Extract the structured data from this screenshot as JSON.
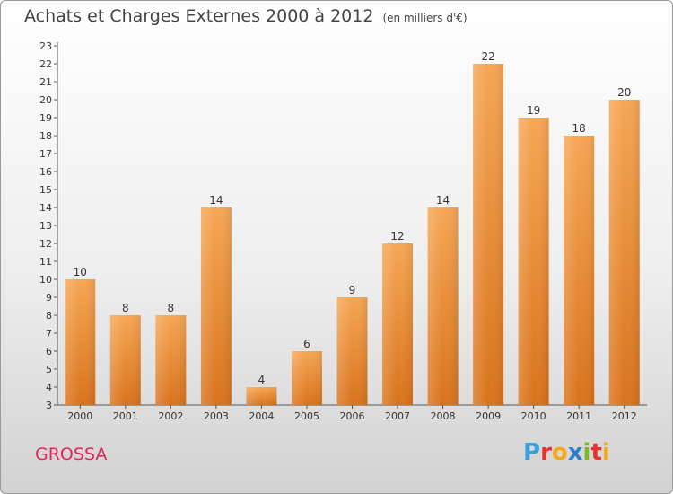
{
  "header": {
    "title": "Achats et Charges Externes 2000 à 2012",
    "subtitle": "(en milliers d'€)"
  },
  "footer": {
    "town": "GROSSA",
    "logo": "Proxiti",
    "logo_colors": [
      "#3aa0d8",
      "#e5322d",
      "#f3a91a",
      "#2a7fc9",
      "#7ab929",
      "#e5322d",
      "#f3a91a"
    ]
  },
  "colors": {
    "bar_top": "#f6a654",
    "bar_bottom": "#d9731c",
    "axis": "#555555",
    "grid": "#bbbbbb",
    "title": "#444444",
    "town": "#e3265a"
  },
  "chart_data": {
    "type": "bar",
    "title": "Achats et Charges Externes 2000 à 2012",
    "subtitle": "(en milliers d'€)",
    "xlabel": "",
    "ylabel": "",
    "ylim": [
      3,
      23
    ],
    "yticks": [
      3,
      4,
      5,
      6,
      7,
      8,
      9,
      10,
      11,
      12,
      13,
      14,
      15,
      16,
      17,
      18,
      19,
      20,
      21,
      22,
      23
    ],
    "categories": [
      "2000",
      "2001",
      "2002",
      "2003",
      "2004",
      "2005",
      "2006",
      "2007",
      "2008",
      "2009",
      "2010",
      "2011",
      "2012"
    ],
    "values": [
      10,
      8,
      8,
      14,
      4,
      6,
      9,
      12,
      14,
      22,
      19,
      18,
      20
    ],
    "grid": false,
    "data_labels": true
  }
}
